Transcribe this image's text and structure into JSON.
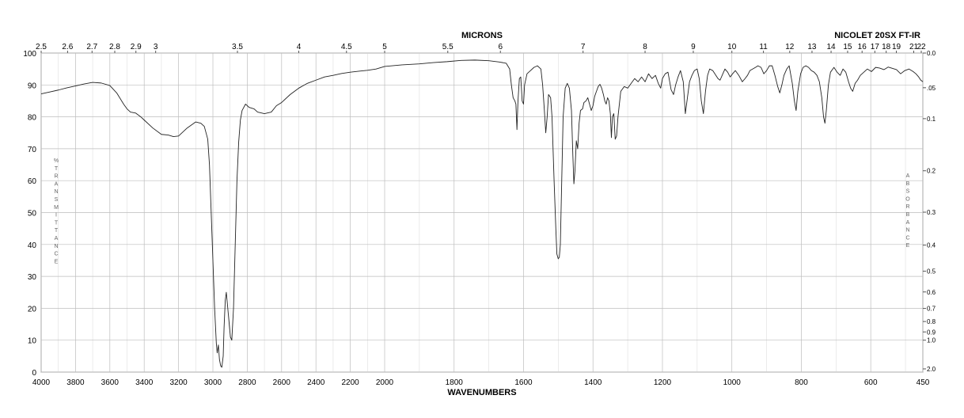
{
  "chart_data": {
    "type": "line",
    "title": "NICOLET 20SX FT-IR",
    "xlabel": "WAVENUMBERS",
    "top_label": "MICRONS",
    "left_axis_label": [
      "%",
      "T",
      "R",
      "A",
      "N",
      "S",
      "M",
      "I",
      "T",
      "T",
      "A",
      "N",
      "C",
      "E"
    ],
    "right_axis_label": [
      "A",
      "B",
      "S",
      "O",
      "R",
      "B",
      "A",
      "N",
      "C",
      "E"
    ],
    "ylim": [
      0,
      100
    ],
    "y_ticks": [
      0,
      10,
      20,
      30,
      40,
      50,
      60,
      70,
      80,
      90,
      100
    ],
    "x_ticks": [
      {
        "value": 4000,
        "label": "4000"
      },
      {
        "value": 3800,
        "label": "3800"
      },
      {
        "value": 3600,
        "label": "3600"
      },
      {
        "value": 3400,
        "label": "3400"
      },
      {
        "value": 3200,
        "label": "3200"
      },
      {
        "value": 3000,
        "label": "3000"
      },
      {
        "value": 2800,
        "label": "2800"
      },
      {
        "value": 2600,
        "label": "2600"
      },
      {
        "value": 2400,
        "label": "2400"
      },
      {
        "value": 2200,
        "label": "2200"
      },
      {
        "value": 2000,
        "label": "2000"
      },
      {
        "value": 1800,
        "label": "1800"
      },
      {
        "value": 1600,
        "label": "1600"
      },
      {
        "value": 1400,
        "label": "1400"
      },
      {
        "value": 1200,
        "label": "1200"
      },
      {
        "value": 1000,
        "label": "1000"
      },
      {
        "value": 800,
        "label": "800"
      },
      {
        "value": 600,
        "label": "600"
      },
      {
        "value": 450,
        "label": "450"
      }
    ],
    "micron_ticks": [
      {
        "value": 2.5,
        "label": "2.5"
      },
      {
        "value": 2.6,
        "label": "2.6"
      },
      {
        "value": 2.7,
        "label": "2.7"
      },
      {
        "value": 2.8,
        "label": "2.8"
      },
      {
        "value": 2.9,
        "label": "2.9"
      },
      {
        "value": 3,
        "label": "3"
      },
      {
        "value": 3.5,
        "label": "3.5"
      },
      {
        "value": 4,
        "label": "4"
      },
      {
        "value": 4.5,
        "label": "4.5"
      },
      {
        "value": 5,
        "label": "5"
      },
      {
        "value": 5.5,
        "label": "5.5"
      },
      {
        "value": 6,
        "label": "6"
      },
      {
        "value": 7,
        "label": "7"
      },
      {
        "value": 8,
        "label": "8"
      },
      {
        "value": 9,
        "label": "9"
      },
      {
        "value": 10,
        "label": "10"
      },
      {
        "value": 11,
        "label": "11"
      },
      {
        "value": 12,
        "label": "12"
      },
      {
        "value": 13,
        "label": "13"
      },
      {
        "value": 14,
        "label": "14"
      },
      {
        "value": 15,
        "label": "15"
      },
      {
        "value": 16,
        "label": "16"
      },
      {
        "value": 17,
        "label": "17"
      },
      {
        "value": 18,
        "label": "18"
      },
      {
        "value": 19,
        "label": "19"
      },
      {
        "value": 21,
        "label": "21"
      },
      {
        "value": 22,
        "label": "22"
      }
    ],
    "absorbance_ticks": [
      {
        "value": 0.0,
        "label": "0.0"
      },
      {
        "value": 0.05,
        "label": ".05"
      },
      {
        "value": 0.1,
        "label": "0.1"
      },
      {
        "value": 0.2,
        "label": "0.2"
      },
      {
        "value": 0.3,
        "label": "0.3"
      },
      {
        "value": 0.4,
        "label": "0.4"
      },
      {
        "value": 0.5,
        "label": "0.5"
      },
      {
        "value": 0.6,
        "label": "0.6"
      },
      {
        "value": 0.7,
        "label": "0.7"
      },
      {
        "value": 0.8,
        "label": "0.8"
      },
      {
        "value": 0.9,
        "label": "0.9"
      },
      {
        "value": 1.0,
        "label": "1.0"
      },
      {
        "value": 2.0,
        "label": "2.0"
      }
    ],
    "grid": true,
    "series": [
      {
        "color": "#222222",
        "points": [
          [
            4000,
            87.2
          ],
          [
            3950,
            87.8
          ],
          [
            3900,
            88.4
          ],
          [
            3850,
            89.1
          ],
          [
            3800,
            89.7
          ],
          [
            3750,
            90.3
          ],
          [
            3700,
            90.8
          ],
          [
            3650,
            90.6
          ],
          [
            3600,
            89.8
          ],
          [
            3560,
            87.5
          ],
          [
            3520,
            84.0
          ],
          [
            3500,
            82.5
          ],
          [
            3480,
            81.5
          ],
          [
            3450,
            81.2
          ],
          [
            3420,
            80.0
          ],
          [
            3400,
            79.0
          ],
          [
            3350,
            76.5
          ],
          [
            3300,
            74.5
          ],
          [
            3260,
            74.3
          ],
          [
            3230,
            73.8
          ],
          [
            3200,
            74.0
          ],
          [
            3150,
            76.5
          ],
          [
            3100,
            78.4
          ],
          [
            3070,
            78.0
          ],
          [
            3050,
            77.0
          ],
          [
            3030,
            73.0
          ],
          [
            3020,
            65.0
          ],
          [
            3010,
            50.0
          ],
          [
            3000,
            35.0
          ],
          [
            2990,
            20.0
          ],
          [
            2980,
            9.0
          ],
          [
            2975,
            6.0
          ],
          [
            2968,
            8.5
          ],
          [
            2962,
            4.0
          ],
          [
            2955,
            2.0
          ],
          [
            2948,
            1.5
          ],
          [
            2940,
            5.0
          ],
          [
            2935,
            14.0
          ],
          [
            2928,
            22.5
          ],
          [
            2922,
            25.0
          ],
          [
            2915,
            21.0
          ],
          [
            2905,
            15.0
          ],
          [
            2898,
            11.0
          ],
          [
            2890,
            10.0
          ],
          [
            2880,
            20.0
          ],
          [
            2870,
            40.0
          ],
          [
            2860,
            60.0
          ],
          [
            2850,
            72.0
          ],
          [
            2840,
            79.0
          ],
          [
            2830,
            82.0
          ],
          [
            2810,
            84.0
          ],
          [
            2790,
            83.0
          ],
          [
            2760,
            82.5
          ],
          [
            2740,
            81.5
          ],
          [
            2700,
            81.0
          ],
          [
            2660,
            81.5
          ],
          [
            2630,
            83.5
          ],
          [
            2600,
            84.5
          ],
          [
            2550,
            87.0
          ],
          [
            2500,
            89.0
          ],
          [
            2450,
            90.5
          ],
          [
            2400,
            91.5
          ],
          [
            2350,
            92.5
          ],
          [
            2300,
            93.0
          ],
          [
            2250,
            93.6
          ],
          [
            2200,
            94.0
          ],
          [
            2150,
            94.3
          ],
          [
            2100,
            94.6
          ],
          [
            2050,
            95.0
          ],
          [
            2000,
            95.8
          ],
          [
            1950,
            96.3
          ],
          [
            1900,
            96.6
          ],
          [
            1860,
            97.0
          ],
          [
            1820,
            97.3
          ],
          [
            1780,
            97.7
          ],
          [
            1740,
            97.8
          ],
          [
            1700,
            97.6
          ],
          [
            1670,
            97.2
          ],
          [
            1650,
            96.8
          ],
          [
            1640,
            95.0
          ],
          [
            1635,
            90.0
          ],
          [
            1630,
            86.0
          ],
          [
            1625,
            85.0
          ],
          [
            1622,
            84.0
          ],
          [
            1619,
            76.0
          ],
          [
            1616,
            85.0
          ],
          [
            1612,
            92.0
          ],
          [
            1608,
            92.5
          ],
          [
            1604,
            85.0
          ],
          [
            1600,
            84.0
          ],
          [
            1597,
            90.0
          ],
          [
            1590,
            93.5
          ],
          [
            1580,
            94.5
          ],
          [
            1570,
            95.5
          ],
          [
            1560,
            96.0
          ],
          [
            1550,
            95.0
          ],
          [
            1545,
            90.0
          ],
          [
            1540,
            82.0
          ],
          [
            1536,
            75.0
          ],
          [
            1532,
            80.0
          ],
          [
            1528,
            87.0
          ],
          [
            1522,
            86.0
          ],
          [
            1518,
            80.0
          ],
          [
            1512,
            60.0
          ],
          [
            1507,
            45.0
          ],
          [
            1504,
            37.0
          ],
          [
            1500,
            35.5
          ],
          [
            1497,
            36.0
          ],
          [
            1494,
            40.0
          ],
          [
            1490,
            60.0
          ],
          [
            1486,
            80.0
          ],
          [
            1480,
            89.0
          ],
          [
            1474,
            90.5
          ],
          [
            1468,
            89.0
          ],
          [
            1462,
            82.0
          ],
          [
            1458,
            68.0
          ],
          [
            1455,
            59.0
          ],
          [
            1452,
            63.0
          ],
          [
            1448,
            72.5
          ],
          [
            1444,
            70.0
          ],
          [
            1440,
            78.0
          ],
          [
            1436,
            82.0
          ],
          [
            1430,
            82.5
          ],
          [
            1426,
            84.5
          ],
          [
            1420,
            85.0
          ],
          [
            1415,
            86.0
          ],
          [
            1410,
            84.0
          ],
          [
            1405,
            82.0
          ],
          [
            1400,
            83.5
          ],
          [
            1395,
            86.5
          ],
          [
            1390,
            88.0
          ],
          [
            1385,
            89.5
          ],
          [
            1380,
            90.2
          ],
          [
            1375,
            89.0
          ],
          [
            1370,
            87.0
          ],
          [
            1366,
            85.0
          ],
          [
            1362,
            84.0
          ],
          [
            1358,
            86.0
          ],
          [
            1354,
            85.0
          ],
          [
            1350,
            81.0
          ],
          [
            1347,
            73.5
          ],
          [
            1344,
            80.0
          ],
          [
            1340,
            81.0
          ],
          [
            1336,
            73.0
          ],
          [
            1332,
            74.0
          ],
          [
            1328,
            80.0
          ],
          [
            1320,
            88.0
          ],
          [
            1310,
            89.5
          ],
          [
            1300,
            89.0
          ],
          [
            1290,
            90.5
          ],
          [
            1280,
            92.0
          ],
          [
            1270,
            91.0
          ],
          [
            1260,
            92.5
          ],
          [
            1250,
            91.0
          ],
          [
            1240,
            93.5
          ],
          [
            1230,
            92.0
          ],
          [
            1220,
            93.0
          ],
          [
            1212,
            90.5
          ],
          [
            1205,
            89.0
          ],
          [
            1200,
            92.0
          ],
          [
            1192,
            93.5
          ],
          [
            1184,
            94.0
          ],
          [
            1175,
            88.5
          ],
          [
            1168,
            87.0
          ],
          [
            1162,
            90.0
          ],
          [
            1155,
            92.5
          ],
          [
            1148,
            94.5
          ],
          [
            1140,
            91.0
          ],
          [
            1134,
            81.0
          ],
          [
            1128,
            86.0
          ],
          [
            1122,
            91.0
          ],
          [
            1115,
            93.0
          ],
          [
            1108,
            94.5
          ],
          [
            1100,
            95.0
          ],
          [
            1094,
            92.0
          ],
          [
            1088,
            85.0
          ],
          [
            1082,
            81.0
          ],
          [
            1076,
            88.0
          ],
          [
            1070,
            93.0
          ],
          [
            1064,
            95.0
          ],
          [
            1055,
            94.5
          ],
          [
            1046,
            93.0
          ],
          [
            1040,
            92.0
          ],
          [
            1034,
            91.5
          ],
          [
            1028,
            93.0
          ],
          [
            1020,
            95.0
          ],
          [
            1012,
            94.0
          ],
          [
            1005,
            92.5
          ],
          [
            998,
            93.5
          ],
          [
            990,
            94.5
          ],
          [
            980,
            93.0
          ],
          [
            970,
            91.0
          ],
          [
            962,
            92.0
          ],
          [
            955,
            93.0
          ],
          [
            948,
            94.5
          ],
          [
            940,
            95.0
          ],
          [
            932,
            95.5
          ],
          [
            925,
            96.0
          ],
          [
            916,
            95.5
          ],
          [
            908,
            93.5
          ],
          [
            900,
            94.5
          ],
          [
            892,
            96.0
          ],
          [
            884,
            96.0
          ],
          [
            876,
            93.0
          ],
          [
            868,
            89.5
          ],
          [
            862,
            87.5
          ],
          [
            856,
            90.0
          ],
          [
            850,
            93.0
          ],
          [
            842,
            95.0
          ],
          [
            835,
            96.0
          ],
          [
            826,
            90.5
          ],
          [
            820,
            85.0
          ],
          [
            815,
            82.0
          ],
          [
            810,
            88.0
          ],
          [
            802,
            93.5
          ],
          [
            795,
            95.5
          ],
          [
            787,
            96.0
          ],
          [
            779,
            95.5
          ],
          [
            771,
            94.5
          ],
          [
            763,
            94.0
          ],
          [
            755,
            93.0
          ],
          [
            748,
            91.0
          ],
          [
            741,
            86.0
          ],
          [
            736,
            80.0
          ],
          [
            732,
            78.0
          ],
          [
            728,
            82.0
          ],
          [
            722,
            90.0
          ],
          [
            716,
            94.0
          ],
          [
            706,
            95.5
          ],
          [
            697,
            94.0
          ],
          [
            688,
            93.0
          ],
          [
            680,
            95.0
          ],
          [
            672,
            94.0
          ],
          [
            664,
            91.0
          ],
          [
            658,
            89.0
          ],
          [
            652,
            88.0
          ],
          [
            645,
            90.5
          ],
          [
            638,
            91.5
          ],
          [
            630,
            93.0
          ],
          [
            620,
            94.0
          ],
          [
            610,
            95.0
          ],
          [
            598,
            94.2
          ],
          [
            586,
            95.5
          ],
          [
            575,
            95.3
          ],
          [
            562,
            94.8
          ],
          [
            550,
            95.6
          ],
          [
            538,
            95.2
          ],
          [
            526,
            94.8
          ],
          [
            514,
            93.5
          ],
          [
            502,
            94.5
          ],
          [
            490,
            95.0
          ],
          [
            478,
            94.2
          ],
          [
            470,
            93.5
          ],
          [
            462,
            92.5
          ],
          [
            456,
            91.5
          ],
          [
            450,
            91.0
          ]
        ]
      }
    ]
  }
}
